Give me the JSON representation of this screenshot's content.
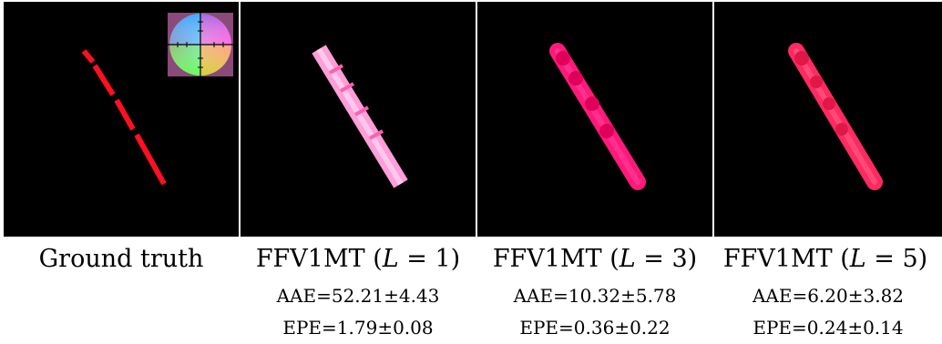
{
  "figure": {
    "panels": [
      {
        "id": "gt",
        "title": "Ground truth",
        "title_L": "",
        "aae": "",
        "epe": ""
      },
      {
        "id": "l1",
        "title": "FFV1MT (",
        "title_L": "L",
        "title_tail": " = 1)",
        "aae": "AAE=52.21±4.43",
        "epe": "EPE=1.79±0.08"
      },
      {
        "id": "l3",
        "title": "FFV1MT (",
        "title_L": "L",
        "title_tail": " = 3)",
        "aae": "AAE=10.32±5.78",
        "epe": "EPE=0.36±0.22"
      },
      {
        "id": "l5",
        "title": "FFV1MT (",
        "title_L": "L",
        "title_tail": " = 5)",
        "aae": "AAE=6.20±3.82",
        "epe": "EPE=0.24±0.14"
      }
    ],
    "colors": {
      "background": "#000000",
      "gt_stripe": "#ff1020",
      "l1_stripe": "#ff9ed8",
      "l3_stripe": "#ff1a7a",
      "l5_stripe": "#ff2a60"
    }
  }
}
